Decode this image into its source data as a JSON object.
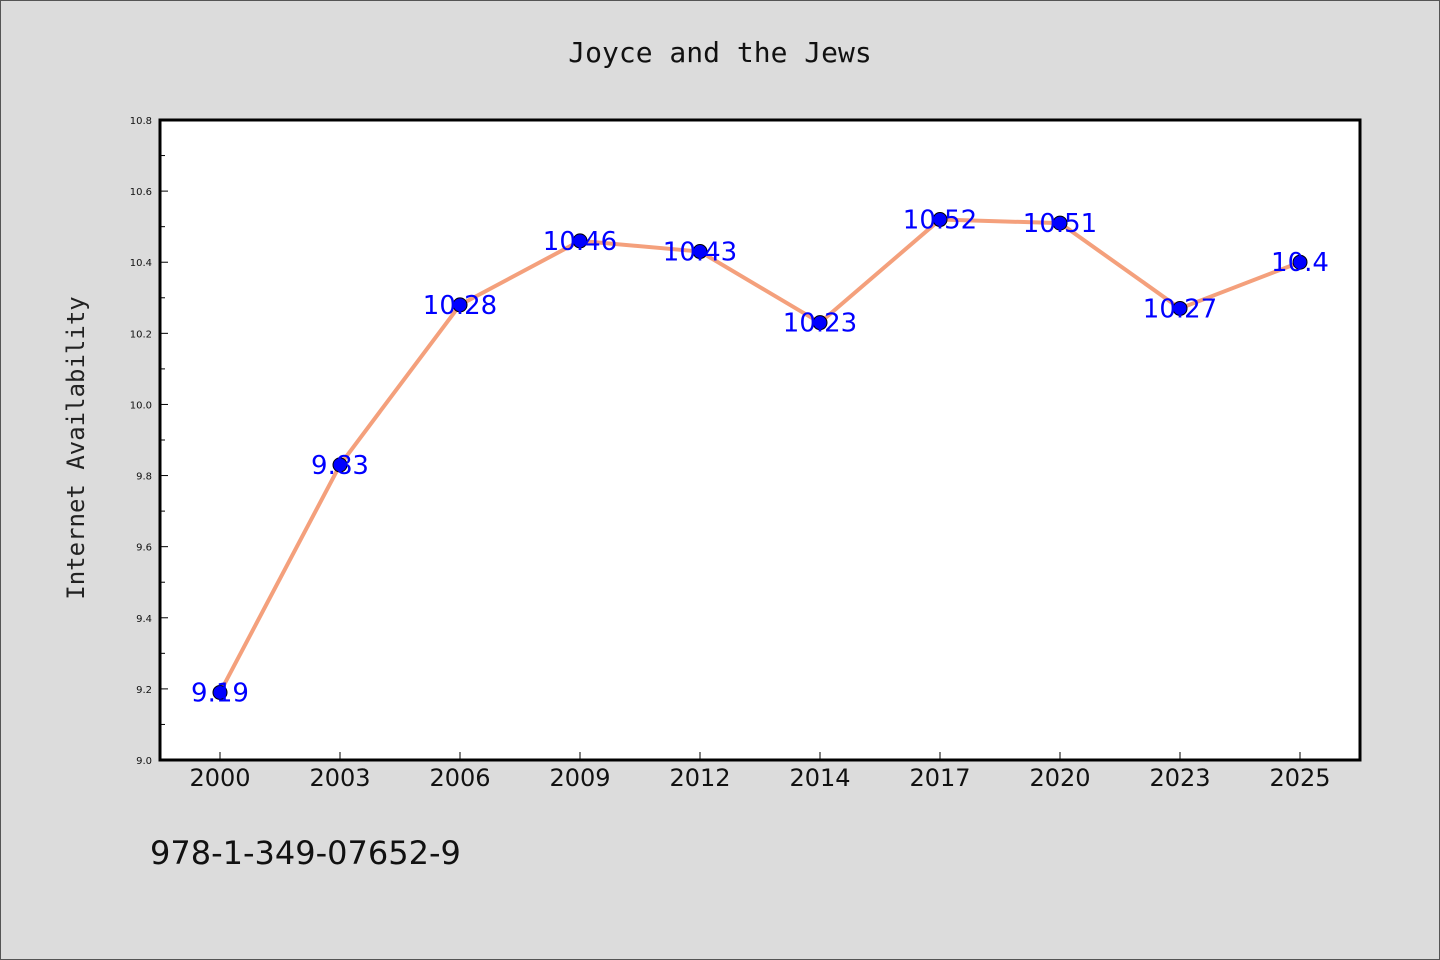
{
  "chart_data": {
    "type": "line",
    "title": "Joyce and the Jews",
    "xlabel": "",
    "ylabel": "Internet Availability",
    "categories": [
      "2000",
      "2003",
      "2006",
      "2009",
      "2012",
      "2014",
      "2017",
      "2020",
      "2023",
      "2025"
    ],
    "series": [
      {
        "values": [
          9.19,
          9.83,
          10.28,
          10.46,
          10.43,
          10.23,
          10.52,
          10.51,
          10.27,
          10.4
        ],
        "data_labels": [
          "9.19",
          "9.83",
          "10.28",
          "10.46",
          "10.43",
          "10.23",
          "10.52",
          "10.51",
          "10.27",
          "10.4"
        ],
        "line_color": "#f4a07c",
        "marker_color": "#0000ff"
      }
    ],
    "ylim": [
      9.0,
      10.8
    ],
    "y_ticks": [
      "9.0",
      "9.2",
      "9.4",
      "9.6",
      "9.8",
      "10.0",
      "10.2",
      "10.4",
      "10.6",
      "10.8"
    ],
    "grid": false,
    "legend": "none"
  },
  "annotation": {
    "text": "978-1-349-07652-9"
  },
  "colors": {
    "background": "#dcdcdc",
    "plot_background": "#ffffff",
    "line": "#f4a07c",
    "marker": "#0000ff",
    "label": "#0000ff"
  }
}
